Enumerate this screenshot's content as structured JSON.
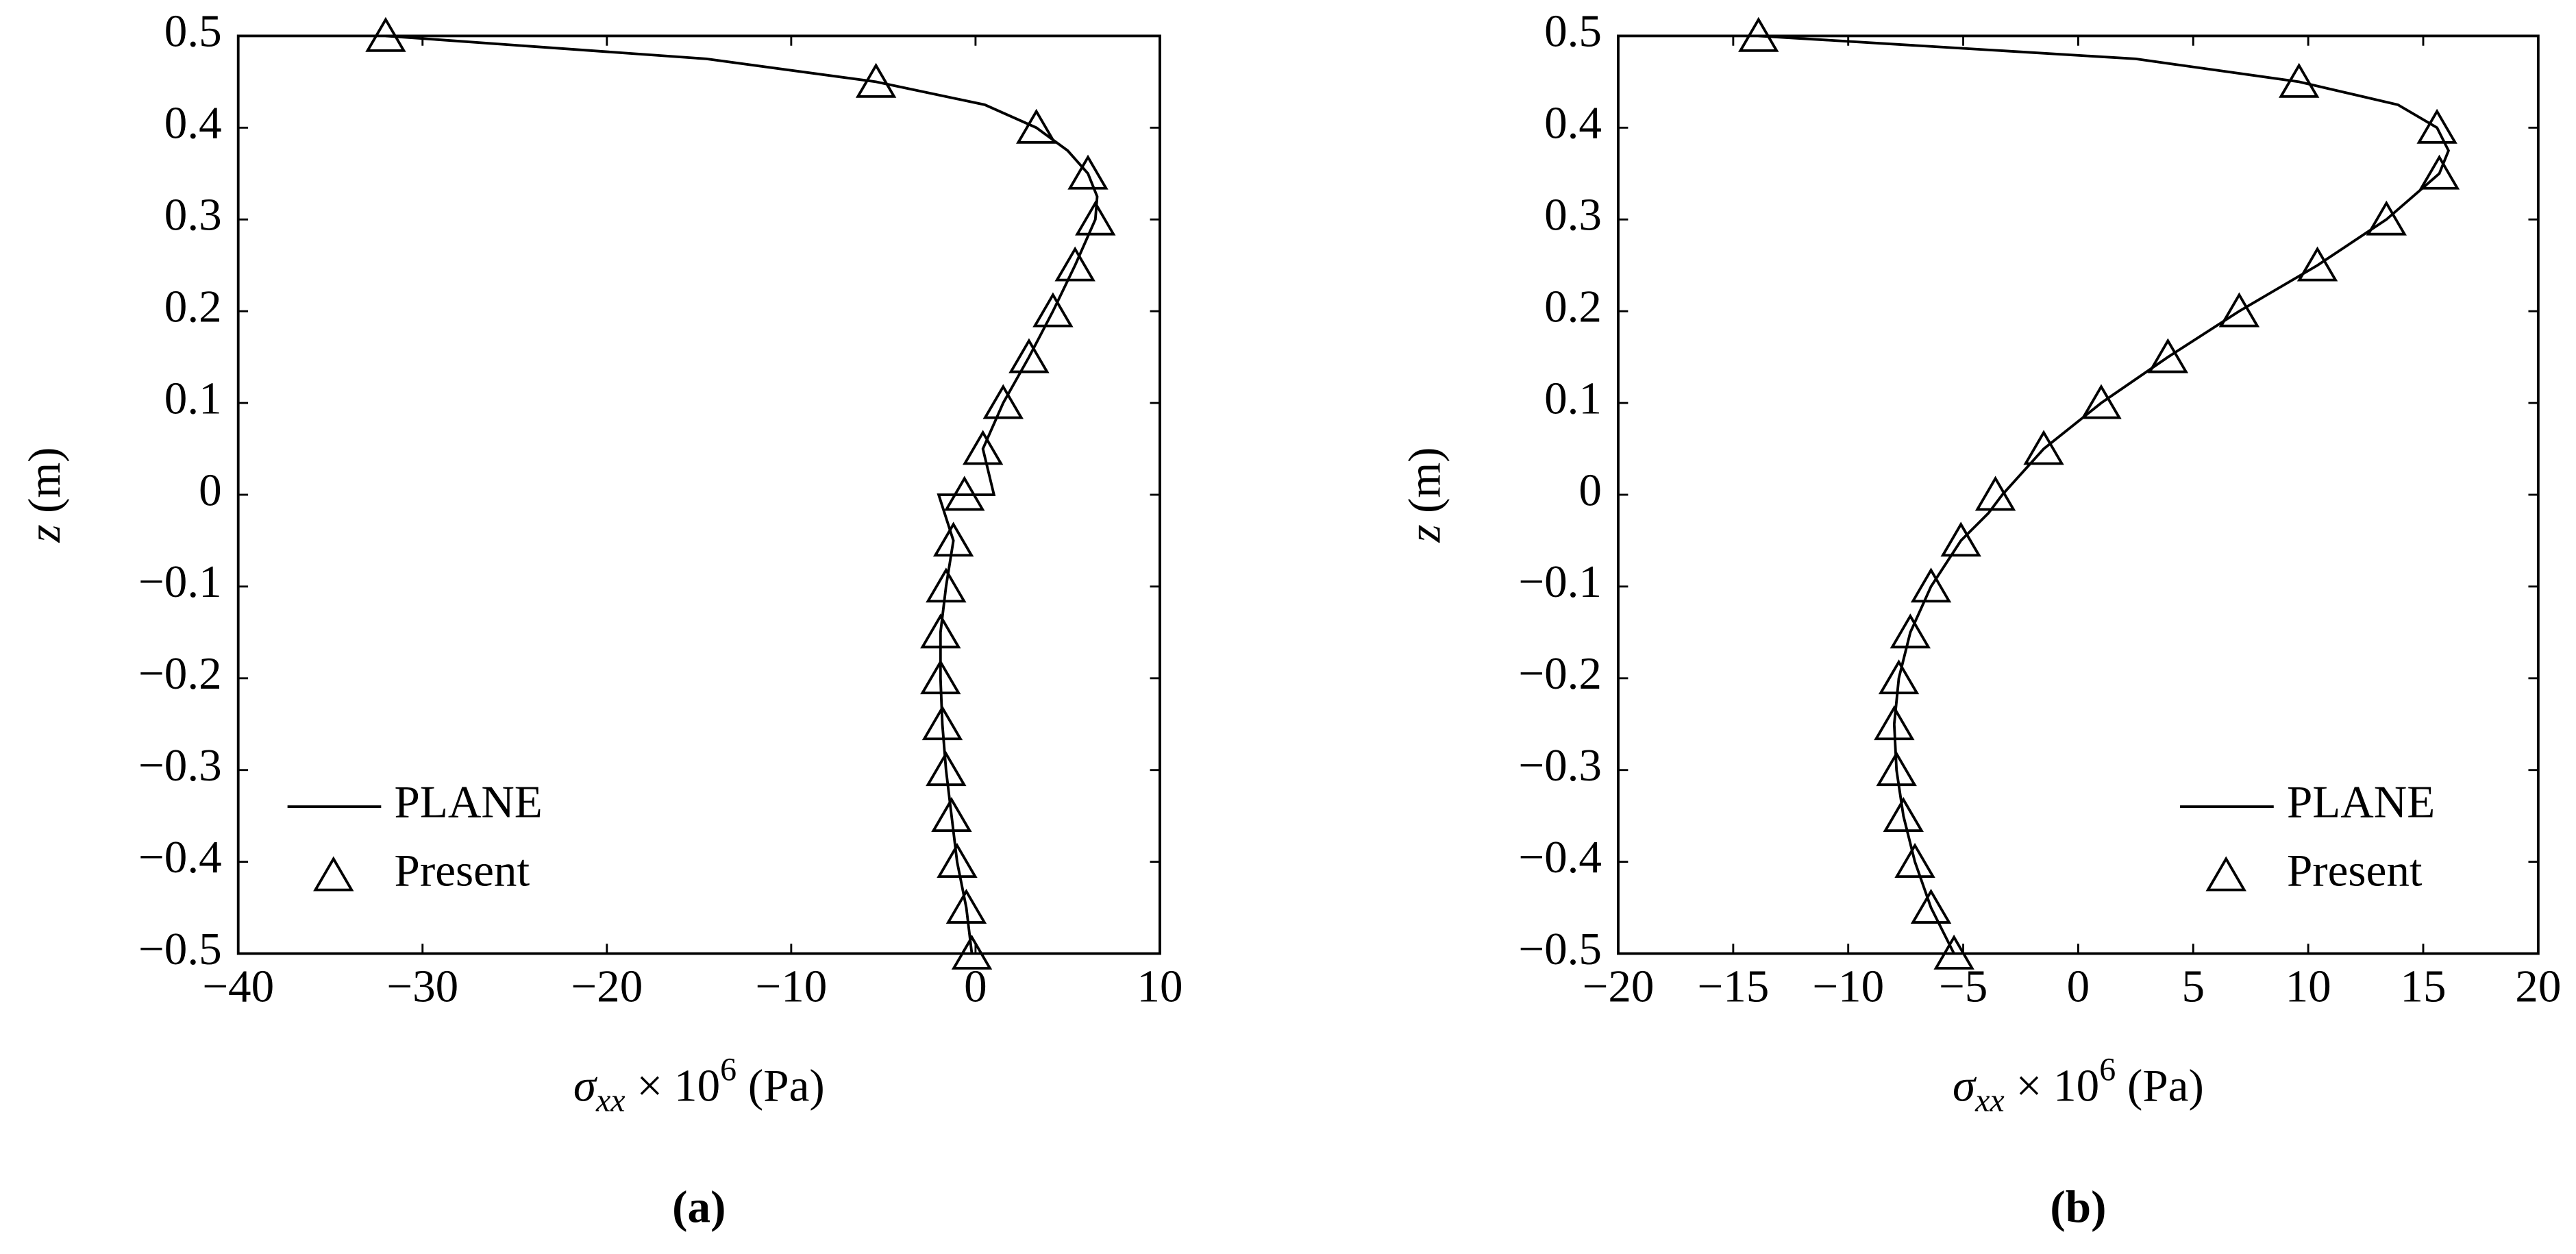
{
  "chart_data": [
    {
      "type": "line",
      "caption": "(a)",
      "xlabel": {
        "symbol": "σ",
        "subscript": "xx",
        "middle": " × 10",
        "superscript": "6",
        "unit": " (Pa)"
      },
      "ylabel": {
        "symbol": "z",
        "unit": " (m)"
      },
      "xlim": [
        -40,
        10
      ],
      "xticks": [
        {
          "value": -40,
          "label": "−40"
        },
        {
          "value": -30,
          "label": "−30"
        },
        {
          "value": -20,
          "label": "−20"
        },
        {
          "value": -10,
          "label": "−10"
        },
        0,
        10
      ],
      "ylim": [
        -0.5,
        0.5
      ],
      "yticks": [
        {
          "value": -0.5,
          "label": "−0.5"
        },
        {
          "value": -0.4,
          "label": "−0.4"
        },
        {
          "value": -0.3,
          "label": "−0.3"
        },
        {
          "value": -0.2,
          "label": "−0.2"
        },
        {
          "value": -0.1,
          "label": "−0.1"
        },
        0,
        0.1,
        0.2,
        0.3,
        0.4,
        0.5
      ],
      "legend": "lower left",
      "color": "#000000",
      "series": [
        {
          "name": "PLANE",
          "marker": "line",
          "x": [
            -32.0,
            -14.6,
            -5.4,
            0.5,
            3.3,
            5.0,
            6.1,
            6.6,
            6.5,
            5.4,
            4.2,
            2.9,
            1.5,
            0.4,
            1.0,
            -2.0,
            -1.2,
            -1.6,
            -1.9,
            -1.9,
            -1.8,
            -1.6,
            -1.3,
            -1.0,
            -0.5,
            -0.2
          ],
          "y": [
            0.5,
            0.475,
            0.45,
            0.425,
            0.4,
            0.375,
            0.35,
            0.325,
            0.3,
            0.25,
            0.2,
            0.15,
            0.1,
            0.05,
            0.0,
            0.0,
            -0.05,
            -0.1,
            -0.15,
            -0.2,
            -0.25,
            -0.3,
            -0.35,
            -0.4,
            -0.45,
            -0.5
          ]
        },
        {
          "name": "Present",
          "marker": "triangle",
          "x": [
            -32.0,
            -5.4,
            3.3,
            6.1,
            6.5,
            5.4,
            4.2,
            2.9,
            1.5,
            0.4,
            -0.6,
            -1.2,
            -1.6,
            -1.9,
            -1.9,
            -1.8,
            -1.6,
            -1.3,
            -1.0,
            -0.5,
            -0.2
          ],
          "y": [
            0.5,
            0.45,
            0.4,
            0.35,
            0.3,
            0.25,
            0.2,
            0.15,
            0.1,
            0.05,
            0.0,
            -0.05,
            -0.1,
            -0.15,
            -0.2,
            -0.25,
            -0.3,
            -0.35,
            -0.4,
            -0.45,
            -0.5
          ]
        }
      ]
    },
    {
      "type": "line",
      "caption": "(b)",
      "xlabel": {
        "symbol": "σ",
        "subscript": "xx",
        "middle": " × 10",
        "superscript": "6",
        "unit": " (Pa)"
      },
      "ylabel": {
        "symbol": "z",
        "unit": " (m)"
      },
      "xlim": [
        -20,
        20
      ],
      "xticks": [
        {
          "value": -20,
          "label": "−20"
        },
        {
          "value": -15,
          "label": "−15"
        },
        {
          "value": -10,
          "label": "−10"
        },
        {
          "value": -5,
          "label": "−5"
        },
        0,
        5,
        10,
        15,
        20
      ],
      "ylim": [
        -0.5,
        0.5
      ],
      "yticks": [
        {
          "value": -0.5,
          "label": "−0.5"
        },
        {
          "value": -0.4,
          "label": "−0.4"
        },
        {
          "value": -0.3,
          "label": "−0.3"
        },
        {
          "value": -0.2,
          "label": "−0.2"
        },
        {
          "value": -0.1,
          "label": "−0.1"
        },
        0,
        0.1,
        0.2,
        0.3,
        0.4,
        0.5
      ],
      "legend": "lower right",
      "color": "#000000",
      "series": [
        {
          "name": "PLANE",
          "marker": "line",
          "x": [
            -13.9,
            2.5,
            9.6,
            13.9,
            15.6,
            16.1,
            15.7,
            13.4,
            10.4,
            7.0,
            3.9,
            1.0,
            -1.5,
            -3.3,
            -3.9,
            -5.1,
            -6.4,
            -7.3,
            -7.8,
            -8.0,
            -7.9,
            -7.6,
            -7.1,
            -6.4,
            -5.4
          ],
          "y": [
            0.5,
            0.475,
            0.45,
            0.425,
            0.4,
            0.375,
            0.35,
            0.3,
            0.25,
            0.2,
            0.15,
            0.1,
            0.05,
            0.0,
            -0.02,
            -0.05,
            -0.1,
            -0.15,
            -0.2,
            -0.25,
            -0.3,
            -0.35,
            -0.4,
            -0.45,
            -0.5
          ]
        },
        {
          "name": "Present",
          "marker": "triangle",
          "x": [
            -13.9,
            9.6,
            15.6,
            15.7,
            13.4,
            10.4,
            7.0,
            3.9,
            1.0,
            -1.5,
            -3.6,
            -5.1,
            -6.4,
            -7.3,
            -7.8,
            -8.0,
            -7.9,
            -7.6,
            -7.1,
            -6.4,
            -5.4
          ],
          "y": [
            0.5,
            0.45,
            0.4,
            0.35,
            0.3,
            0.25,
            0.2,
            0.15,
            0.1,
            0.05,
            0.0,
            -0.05,
            -0.1,
            -0.15,
            -0.2,
            -0.25,
            -0.3,
            -0.35,
            -0.4,
            -0.45,
            -0.5
          ]
        }
      ]
    }
  ]
}
